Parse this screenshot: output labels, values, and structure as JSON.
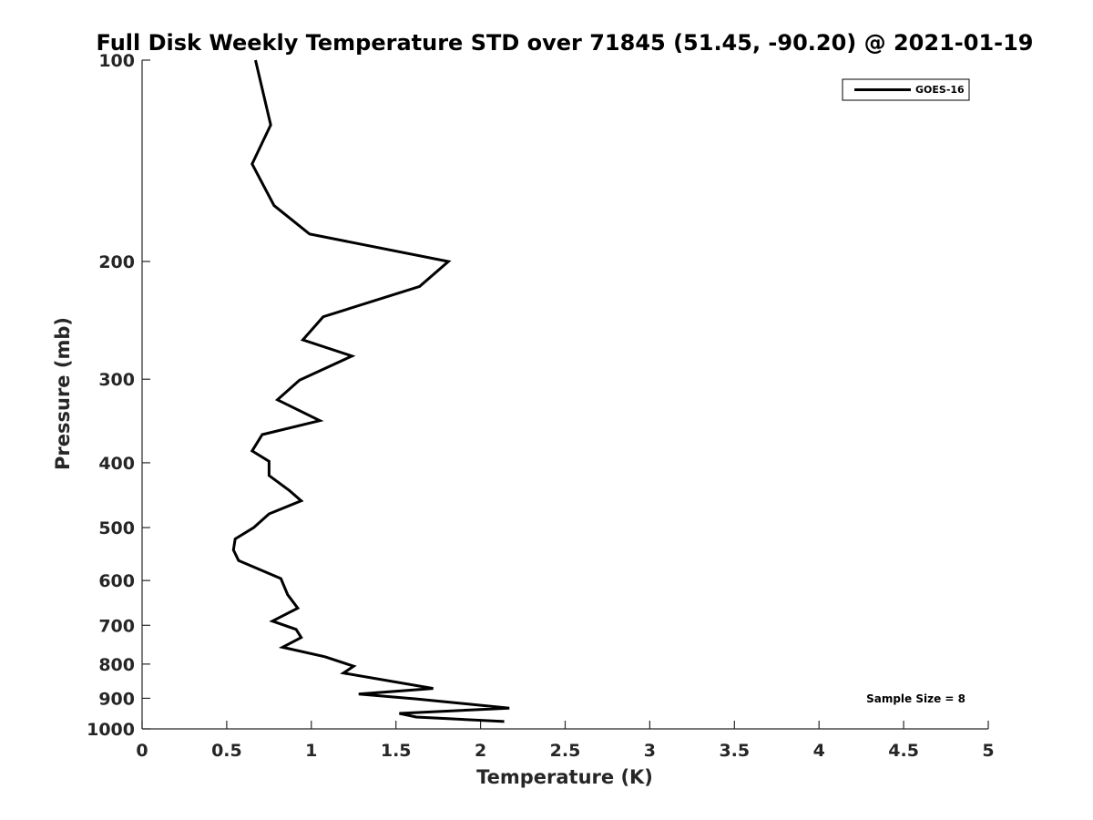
{
  "chart_data": {
    "type": "line",
    "title": "Full Disk Weekly Temperature STD over 71845 (51.45, -90.20) @ 2021-01-19",
    "xlabel": "Temperature (K)",
    "ylabel": "Pressure (mb)",
    "xlim": [
      0,
      5
    ],
    "ylim": [
      100,
      1000
    ],
    "y_scale": "log",
    "y_reversed": true,
    "x_ticks": [
      "0",
      "0.5",
      "1",
      "1.5",
      "2",
      "2.5",
      "3",
      "3.5",
      "4",
      "4.5",
      "5"
    ],
    "y_ticks": [
      "100",
      "200",
      "300",
      "400",
      "500",
      "600",
      "700",
      "800",
      "900",
      "1000"
    ],
    "grid": false,
    "legend_position": "top-right",
    "annotation": "Sample Size = 8",
    "series": [
      {
        "name": "GOES-16",
        "color": "#000000",
        "points": [
          [
            0.67,
            100
          ],
          [
            0.76,
            125
          ],
          [
            0.65,
            143
          ],
          [
            0.78,
            165
          ],
          [
            0.99,
            182
          ],
          [
            1.81,
            200
          ],
          [
            1.64,
            218
          ],
          [
            1.07,
            242
          ],
          [
            0.95,
            262
          ],
          [
            1.24,
            277
          ],
          [
            0.93,
            301
          ],
          [
            0.8,
            322
          ],
          [
            1.05,
            346
          ],
          [
            0.71,
            363
          ],
          [
            0.65,
            384
          ],
          [
            0.75,
            398
          ],
          [
            0.75,
            418
          ],
          [
            0.87,
            440
          ],
          [
            0.94,
            456
          ],
          [
            0.75,
            477
          ],
          [
            0.66,
            500
          ],
          [
            0.55,
            520
          ],
          [
            0.54,
            540
          ],
          [
            0.57,
            560
          ],
          [
            0.82,
            596
          ],
          [
            0.86,
            630
          ],
          [
            0.92,
            660
          ],
          [
            0.77,
            690
          ],
          [
            0.91,
            710
          ],
          [
            0.94,
            730
          ],
          [
            0.83,
            755
          ],
          [
            1.08,
            780
          ],
          [
            1.25,
            806
          ],
          [
            1.19,
            825
          ],
          [
            1.72,
            870
          ],
          [
            1.28,
            887
          ],
          [
            1.62,
            902
          ],
          [
            2.17,
            931
          ],
          [
            1.52,
            948
          ],
          [
            1.62,
            960
          ],
          [
            2.14,
            975
          ]
        ]
      }
    ]
  }
}
